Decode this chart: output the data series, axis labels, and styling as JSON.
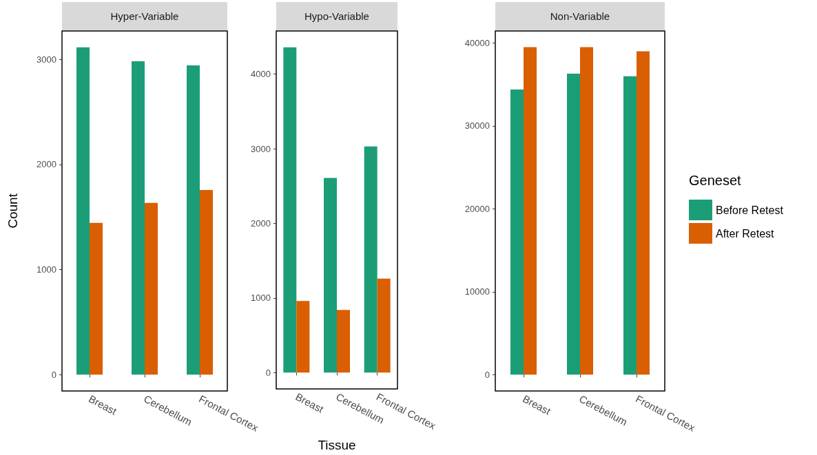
{
  "chart_data": [
    {
      "type": "bar",
      "title": "Hyper-Variable",
      "ylabel": "Count",
      "categories": [
        "Breast",
        "Cerebellum",
        "Frontal Cortex"
      ],
      "series": [
        {
          "color": "#1b9e77",
          "values": [
            3115,
            2982,
            2943
          ]
        },
        {
          "color": "#d95f02",
          "values": [
            1444,
            1634,
            1758
          ]
        }
      ],
      "ylim": [
        -156,
        3271
      ],
      "yticks": [
        0,
        1000,
        2000,
        3000
      ],
      "grid": false,
      "legend": false
    },
    {
      "type": "bar",
      "title": "Hypo-Variable",
      "xlabel": "Tissue",
      "categories": [
        "Breast",
        "Cerebellum",
        "Frontal Cortex"
      ],
      "series": [
        {
          "color": "#1b9e77",
          "values": [
            4360,
            2610,
            3030
          ]
        },
        {
          "color": "#d95f02",
          "values": [
            960,
            840,
            1260
          ]
        }
      ],
      "ylim": [
        -218,
        4578
      ],
      "yticks": [
        0,
        1000,
        2000,
        3000,
        4000
      ],
      "grid": false,
      "legend": false
    },
    {
      "type": "bar",
      "title": "Non-Variable",
      "legend_title": "Geneset",
      "categories": [
        "Breast",
        "Cerebellum",
        "Frontal Cortex"
      ],
      "series": [
        {
          "name": "Before Retest",
          "color": "#1b9e77",
          "values": [
            34400,
            36300,
            36000
          ]
        },
        {
          "name": "After Retest",
          "color": "#d95f02",
          "values": [
            39500,
            39500,
            39000
          ]
        }
      ],
      "ylim": [
        -1974,
        41454
      ],
      "yticks": [
        0,
        10000,
        20000,
        30000,
        40000
      ],
      "grid": false,
      "legend": "right"
    }
  ]
}
